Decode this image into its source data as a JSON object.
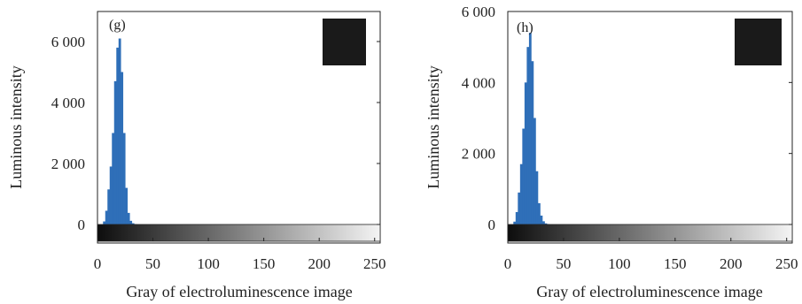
{
  "chart_data": [
    {
      "type": "bar",
      "panel_label": "(g)",
      "xlabel": "Gray of electroluminescence image",
      "ylabel": "Luminous intensity",
      "xlim": [
        0,
        255
      ],
      "ylim": [
        -300,
        7000
      ],
      "xticks": [
        0,
        50,
        100,
        150,
        200,
        250
      ],
      "yticks": [
        0,
        2000,
        4000,
        6000
      ],
      "ytick_labels": [
        "0",
        "2 000",
        "4 000",
        "6 000"
      ],
      "grid": false,
      "legend": "none",
      "colors": {
        "bars": "#2f6fb8",
        "colorbar_start": "#0d0d0d",
        "colorbar_end": "#f4f4f4",
        "inset": "#1a1a1a"
      },
      "x": [
        6,
        8,
        10,
        12,
        14,
        16,
        18,
        20,
        22,
        24,
        26,
        28,
        30,
        32,
        34
      ],
      "values": [
        100,
        450,
        1150,
        1900,
        3000,
        4700,
        5800,
        6100,
        5000,
        3000,
        1200,
        380,
        120,
        40,
        10
      ]
    },
    {
      "type": "bar",
      "panel_label": "(h)",
      "xlabel": "Gray of electroluminescence image",
      "ylabel": "Luminous intensity",
      "xlim": [
        0,
        255
      ],
      "ylim": [
        -300,
        6000
      ],
      "xticks": [
        0,
        50,
        100,
        150,
        200,
        250
      ],
      "yticks": [
        0,
        2000,
        4000,
        6000
      ],
      "ytick_labels": [
        "0",
        "2 000",
        "4 000",
        "6 000"
      ],
      "grid": false,
      "legend": "none",
      "colors": {
        "bars": "#2f6fb8",
        "colorbar_start": "#0d0d0d",
        "colorbar_end": "#f4f4f4",
        "inset": "#1a1a1a"
      },
      "x": [
        6,
        8,
        10,
        12,
        14,
        16,
        18,
        20,
        22,
        24,
        26,
        28,
        30,
        32,
        34,
        36
      ],
      "values": [
        80,
        350,
        900,
        1700,
        2700,
        4000,
        5000,
        5400,
        4600,
        3000,
        1500,
        600,
        250,
        90,
        30,
        10
      ]
    }
  ]
}
